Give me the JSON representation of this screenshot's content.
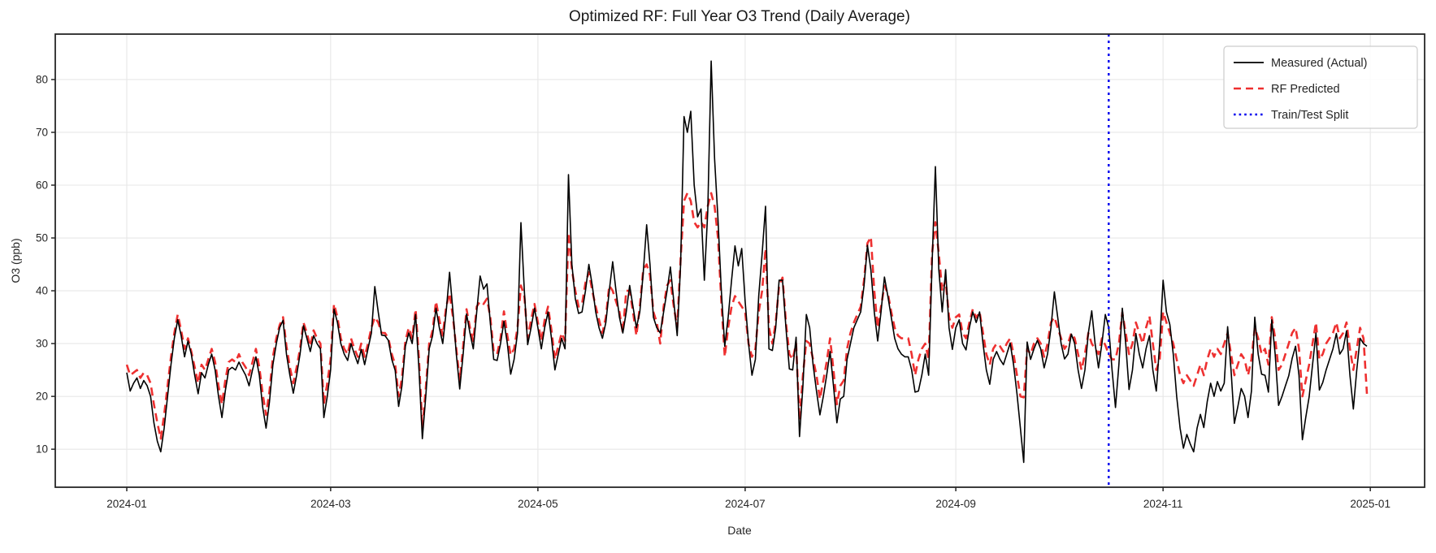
{
  "title": "Optimized RF: Full Year O3 Trend (Daily Average)",
  "axes": {
    "xlabel": "Date",
    "ylabel": "O3 (ppb)",
    "yticks": [
      10,
      20,
      30,
      40,
      50,
      60,
      70,
      80
    ],
    "xtick_labels": [
      "2024-01",
      "2024-03",
      "2024-05",
      "2024-07",
      "2024-09",
      "2024-11",
      "2025-01"
    ],
    "xtick_day_index": [
      0,
      60,
      121,
      182,
      244,
      305,
      366
    ],
    "ylim": [
      2.8,
      88.6
    ],
    "grid": true
  },
  "legend": {
    "position": "upper right",
    "entries": [
      {
        "label": "Measured (Actual)",
        "color": "#000000",
        "style": "solid"
      },
      {
        "label": "RF Predicted",
        "color": "#ee3030",
        "style": "dashed"
      },
      {
        "label": "Train/Test Split",
        "color": "#0000ee",
        "style": "dotted"
      }
    ]
  },
  "colors": {
    "measured": "#000000",
    "predicted": "#ee3030",
    "split": "#0000ee",
    "grid": "#e7e7e7",
    "spine": "#262626",
    "background": "#ffffff"
  },
  "chart_data": {
    "type": "line",
    "x_start_date": "2024-01-01",
    "x_freq": "daily",
    "n_points": 366,
    "split_day_index": 289,
    "series": [
      {
        "name": "Measured (Actual)",
        "values": [
          24.5,
          21,
          22.5,
          23.5,
          21.5,
          23,
          22,
          20,
          15,
          11.5,
          9.5,
          14,
          20,
          26,
          31,
          34.5,
          31.5,
          27.5,
          30.5,
          28,
          24,
          20.5,
          24.5,
          23.5,
          26,
          28,
          25,
          20,
          16,
          21,
          25,
          25.5,
          25,
          26.5,
          25.2,
          24,
          22,
          25,
          27.5,
          24,
          18,
          14,
          19,
          26,
          30,
          33,
          34.4,
          28,
          24,
          20.6,
          24,
          28,
          33.4,
          31,
          28.5,
          31.5,
          30,
          29,
          16,
          20,
          25,
          36.5,
          34,
          30,
          28,
          26.8,
          30,
          28,
          26.2,
          28.9,
          26,
          29,
          32,
          40.8,
          36,
          31.6,
          31.5,
          30.6,
          27,
          24.9,
          18.1,
          22,
          29.5,
          32,
          30,
          35.5,
          25,
          12,
          20,
          29,
          31.5,
          36.7,
          33,
          30,
          36,
          43.5,
          36,
          28,
          21.4,
          28,
          35.6,
          32,
          29,
          36,
          42.8,
          40.3,
          41.3,
          34,
          27,
          26.8,
          30,
          34.2,
          30,
          24.2,
          27,
          32,
          52.9,
          40,
          29.8,
          33,
          36.7,
          33,
          29,
          33,
          36,
          31,
          25,
          28,
          31,
          29,
          62,
          45,
          38.5,
          35.7,
          36,
          40,
          45,
          41,
          36,
          33,
          31,
          34,
          40,
          45.5,
          40,
          35,
          32,
          36,
          41,
          37,
          33,
          36,
          43.4,
          52.5,
          45,
          35,
          33,
          32,
          36,
          40,
          44.5,
          38,
          31.5,
          45,
          73,
          70,
          74,
          60,
          54,
          55.5,
          42,
          55,
          83.5,
          65,
          53.5,
          40,
          29.5,
          35,
          42,
          48.5,
          44.7,
          48,
          38,
          30,
          24,
          27,
          39,
          47,
          56,
          29,
          28.7,
          33,
          42,
          42,
          33,
          25.2,
          25,
          31.2,
          12.4,
          22,
          35.5,
          33,
          26,
          21,
          16.5,
          20,
          24,
          28.5,
          22,
          15,
          19.5,
          20,
          27,
          30,
          33,
          34.5,
          36,
          41,
          48.6,
          44,
          36,
          30.5,
          36,
          42.6,
          39,
          35,
          31,
          29,
          28,
          27.5,
          27.5,
          25,
          20.8,
          21,
          24,
          28,
          24,
          45,
          63.5,
          44,
          36,
          44,
          33,
          28.9,
          33,
          34.5,
          30,
          28.8,
          33,
          36,
          34,
          36,
          30,
          25,
          22.3,
          27,
          28.5,
          27,
          26,
          28,
          30.1,
          26,
          20.5,
          14,
          7.5,
          30.3,
          27,
          29,
          30.6,
          29,
          25.4,
          28,
          33,
          39.8,
          35,
          30,
          27.1,
          28,
          31.8,
          30,
          25,
          21.5,
          25,
          32,
          36.2,
          30,
          25.4,
          30,
          35.5,
          33,
          25,
          17.9,
          26,
          36.7,
          30,
          21.3,
          25,
          31.9,
          28,
          25.4,
          29,
          31.5,
          25,
          21,
          30,
          42,
          36,
          33.6,
          28,
          20,
          14,
          10.2,
          12.8,
          11,
          9.5,
          14,
          16.6,
          14.1,
          19,
          22.5,
          20,
          22.8,
          21,
          22.5,
          33.2,
          25,
          14.9,
          18,
          21.5,
          20,
          16,
          21,
          35,
          28,
          24.2,
          24,
          20.8,
          34.5,
          28,
          18.3,
          20,
          22,
          23.9,
          27.2,
          29.5,
          24,
          11.8,
          16,
          19.9,
          26,
          32,
          21.2,
          22.6,
          25,
          27,
          29,
          31.9,
          28,
          29,
          32.4,
          24,
          17.6,
          25,
          31,
          30,
          29.5
        ]
      },
      {
        "name": "RF Predicted",
        "values": [
          26,
          24,
          24.5,
          25,
          23.5,
          24.5,
          24,
          22.5,
          18.5,
          15,
          12,
          16.5,
          22,
          27.5,
          32,
          35.5,
          32.5,
          29,
          31,
          28.5,
          25.5,
          22.5,
          26,
          25,
          27,
          29,
          26.5,
          22,
          18.5,
          23,
          26.5,
          27,
          26.5,
          28,
          26.5,
          25.5,
          24,
          26.5,
          29,
          25.5,
          20.5,
          16.5,
          21,
          27.5,
          31,
          33.5,
          35,
          29.5,
          25.5,
          22.5,
          25.5,
          29,
          34,
          32,
          29.5,
          32.5,
          31,
          30,
          18.5,
          22.5,
          27,
          37.5,
          35,
          31,
          29,
          28,
          31,
          29,
          27.5,
          30,
          27.5,
          30,
          33,
          35,
          34,
          32,
          32,
          31,
          28,
          26,
          20,
          23.5,
          30.5,
          33,
          31,
          36.5,
          27,
          14,
          21.5,
          30,
          32.5,
          38,
          34.5,
          31.5,
          37,
          39.5,
          35,
          29,
          23,
          29.5,
          36.5,
          33,
          30.5,
          37,
          38,
          37.5,
          38.5,
          35,
          28.5,
          28,
          31,
          36.1,
          31.5,
          27.8,
          29,
          33,
          41,
          39,
          31,
          34.5,
          37.5,
          34,
          30.5,
          34.5,
          37,
          32.5,
          27,
          29.5,
          32,
          30.5,
          51,
          44,
          40,
          37,
          37.5,
          41.5,
          43.5,
          40,
          37,
          34.5,
          32,
          35,
          41,
          40,
          38,
          36,
          32,
          40,
          40,
          36,
          31.5,
          37,
          44,
          45,
          43,
          36,
          34,
          30,
          37,
          41,
          42,
          37,
          33,
          46,
          57,
          58.5,
          57,
          53,
          52,
          53,
          52,
          56,
          58.5,
          56,
          50,
          38,
          27.5,
          33,
          37,
          39,
          38,
          37,
          36,
          30,
          27.5,
          29,
          36,
          40,
          48,
          33,
          30,
          34,
          41,
          42.5,
          34,
          28,
          27,
          30,
          15.5,
          24,
          30.5,
          30,
          27,
          24,
          19.5,
          23,
          26.5,
          31,
          25,
          18.5,
          22,
          23,
          29,
          32,
          34,
          35.5,
          37,
          42,
          49,
          50.2,
          40,
          33,
          37,
          41,
          39.5,
          36,
          33,
          31.5,
          31,
          31,
          31,
          28,
          24,
          27,
          29,
          30,
          27,
          47,
          53,
          47,
          40,
          42,
          35,
          33,
          35,
          35.5,
          32,
          31,
          34,
          36.5,
          34.9,
          36,
          32,
          28,
          26,
          29,
          30,
          29.5,
          28.5,
          30,
          31,
          28,
          24,
          20,
          19.8,
          29,
          28,
          30,
          31,
          30,
          27.5,
          30,
          34,
          35,
          33,
          31,
          29,
          30,
          32,
          31,
          28,
          25,
          28,
          32,
          30,
          29,
          28,
          31,
          29.7,
          28,
          27,
          27,
          30,
          35.9,
          32,
          28,
          30,
          34,
          32,
          30,
          33,
          35.2,
          30,
          25,
          27,
          36,
          34,
          32,
          30,
          27,
          24,
          22.5,
          24,
          23,
          22,
          24,
          26,
          24,
          27,
          29,
          27.5,
          29,
          28,
          30,
          32,
          28,
          24,
          26,
          28,
          27,
          24,
          27,
          33,
          31,
          28,
          29,
          26,
          35,
          31,
          25,
          26,
          28,
          30,
          32,
          33,
          29,
          20,
          23,
          26,
          30,
          34,
          27,
          28,
          30,
          31,
          32,
          34,
          31,
          32,
          34,
          29,
          25,
          29,
          33,
          31,
          20.5
        ]
      }
    ]
  }
}
